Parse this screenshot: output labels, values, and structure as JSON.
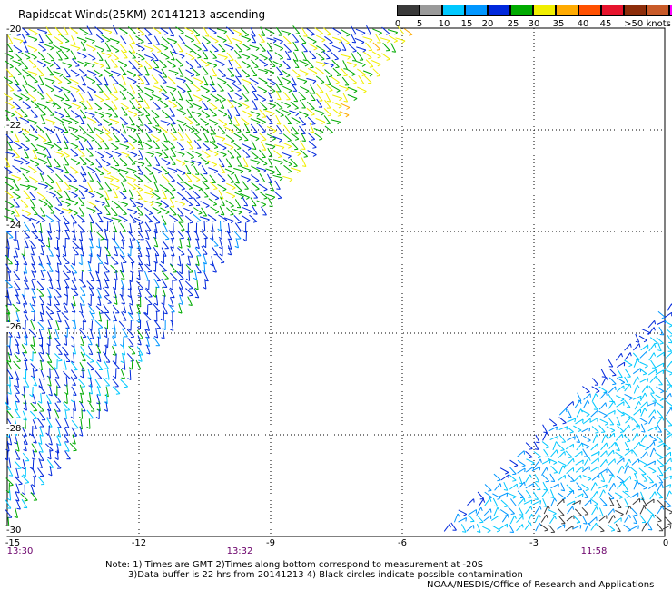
{
  "title": "Rapidscat Winds(25KM) 20141213 ascending",
  "legend": {
    "colors": [
      "#3a3a3a",
      "#9a9a9a",
      "#00c8ff",
      "#0096ff",
      "#0028dc",
      "#00aa00",
      "#f0ee00",
      "#ffaa00",
      "#ff5000",
      "#e6142d",
      "#8c2d0a",
      "#c85a28",
      "#ff00ff",
      "#a000c8",
      "#500096"
    ],
    "labels": [
      "0",
      "5",
      "10",
      "15",
      "20",
      "25",
      "30",
      "35",
      "40",
      "45",
      ">50 knots"
    ]
  },
  "map": {
    "lat_labels": [
      "-20",
      "-22",
      "-24",
      "-26",
      "-28",
      "-30"
    ],
    "lon_labels": [
      "-15",
      "-12",
      "-9",
      "-6",
      "-3",
      "0"
    ],
    "time_labels": [
      "13:30",
      "13:32",
      "11:58"
    ]
  },
  "notes": {
    "line1": "Note: 1) Times are GMT 2)Times along bottom correspond to measurement at -20S",
    "line2": "3)Data buffer is 22 hrs from 20141213 4) Black circles indicate possible contamination",
    "line3": "NOAA/NESDIS/Office of Research and Applications"
  }
}
